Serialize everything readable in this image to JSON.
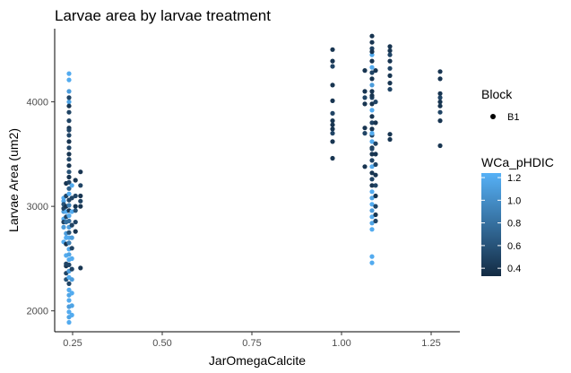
{
  "chart_data": {
    "type": "scatter",
    "title": "Larvae area by larvae treatment",
    "xlabel": "JarOmegaCalcite",
    "ylabel": "Larvae Area (um2)",
    "xlim": [
      0.2,
      1.33
    ],
    "ylim": [
      1800,
      4700
    ],
    "xticks": [
      0.25,
      0.5,
      0.75,
      1.0,
      1.25
    ],
    "xtick_labels": [
      "0.25",
      "0.50",
      "0.75",
      "1.00",
      "1.25"
    ],
    "yticks": [
      2000,
      3000,
      4000
    ],
    "ytick_labels": [
      "2000",
      "3000",
      "4000"
    ],
    "grid": false,
    "legend_shape": {
      "title": "Block",
      "entries": [
        "B1"
      ]
    },
    "legend_color": {
      "title": "WCa_pHDIC",
      "min": 0.33,
      "max": 1.24,
      "ticks": [
        0.4,
        0.6,
        0.8,
        1.0,
        1.2
      ],
      "tick_labels": [
        "0.4",
        "0.6",
        "0.8",
        "1.0",
        "1.2"
      ],
      "low_color": "#132B43",
      "high_color": "#56B1F7"
    },
    "points": [
      [
        0.225,
        3080,
        1.2
      ],
      [
        0.225,
        3050,
        1.15
      ],
      [
        0.225,
        2950,
        1.1
      ],
      [
        0.225,
        2880,
        1.2
      ],
      [
        0.225,
        2800,
        1.1
      ],
      [
        0.225,
        2660,
        1.2
      ],
      [
        0.225,
        2850,
        0.5
      ],
      [
        0.225,
        2980,
        0.5
      ],
      [
        0.225,
        3020,
        0.6
      ],
      [
        0.232,
        3220,
        0.4
      ],
      [
        0.232,
        3100,
        0.5
      ],
      [
        0.232,
        2950,
        1.2
      ],
      [
        0.232,
        2850,
        0.8
      ],
      [
        0.232,
        2740,
        1.1
      ],
      [
        0.232,
        2640,
        0.4
      ],
      [
        0.232,
        2530,
        1.2
      ],
      [
        0.232,
        2430,
        0.4
      ],
      [
        0.232,
        2360,
        0.5
      ],
      [
        0.232,
        2300,
        0.6
      ],
      [
        0.232,
        2900,
        0.5
      ],
      [
        0.232,
        3000,
        0.4
      ],
      [
        0.232,
        2700,
        1.2
      ],
      [
        0.232,
        2450,
        0.5
      ],
      [
        0.24,
        4270,
        1.2
      ],
      [
        0.24,
        4210,
        1.2
      ],
      [
        0.24,
        4100,
        1.1
      ],
      [
        0.24,
        4000,
        1.15
      ],
      [
        0.24,
        3900,
        0.5
      ],
      [
        0.24,
        3820,
        0.5
      ],
      [
        0.24,
        3750,
        0.4
      ],
      [
        0.24,
        3680,
        0.5
      ],
      [
        0.24,
        3620,
        0.4
      ],
      [
        0.24,
        3560,
        0.5
      ],
      [
        0.24,
        3500,
        0.4
      ],
      [
        0.24,
        3450,
        0.5
      ],
      [
        0.24,
        3390,
        0.4
      ],
      [
        0.24,
        3330,
        0.6
      ],
      [
        0.24,
        3280,
        0.4
      ],
      [
        0.24,
        3230,
        0.5
      ],
      [
        0.24,
        3170,
        0.7
      ],
      [
        0.24,
        3120,
        1.2
      ],
      [
        0.24,
        3060,
        0.5
      ],
      [
        0.24,
        3010,
        0.9
      ],
      [
        0.24,
        2960,
        0.4
      ],
      [
        0.24,
        2910,
        1.2
      ],
      [
        0.24,
        2860,
        0.8
      ],
      [
        0.24,
        2800,
        1.1
      ],
      [
        0.24,
        2750,
        0.6
      ],
      [
        0.24,
        2700,
        1.2
      ],
      [
        0.24,
        2650,
        0.9
      ],
      [
        0.24,
        2590,
        1.2
      ],
      [
        0.24,
        2540,
        1.15
      ],
      [
        0.24,
        2490,
        1.2
      ],
      [
        0.24,
        2440,
        0.5
      ],
      [
        0.24,
        2380,
        1.1
      ],
      [
        0.24,
        2320,
        1.2
      ],
      [
        0.24,
        2260,
        0.5
      ],
      [
        0.24,
        2200,
        1.2
      ],
      [
        0.24,
        2150,
        1.15
      ],
      [
        0.24,
        2100,
        1.2
      ],
      [
        0.24,
        2040,
        1.1
      ],
      [
        0.24,
        1990,
        1.2
      ],
      [
        0.24,
        1940,
        1.15
      ],
      [
        0.24,
        1890,
        1.2
      ],
      [
        0.24,
        4040,
        0.5
      ],
      [
        0.24,
        3960,
        0.4
      ],
      [
        0.24,
        3730,
        0.5
      ],
      [
        0.248,
        3200,
        1.2
      ],
      [
        0.248,
        3080,
        0.5
      ],
      [
        0.248,
        2950,
        1.2
      ],
      [
        0.248,
        2820,
        0.5
      ],
      [
        0.248,
        2700,
        1.1
      ],
      [
        0.248,
        2600,
        0.5
      ],
      [
        0.248,
        2500,
        1.2
      ],
      [
        0.248,
        2400,
        0.5
      ],
      [
        0.248,
        2300,
        1.1
      ],
      [
        0.248,
        2170,
        1.2
      ],
      [
        0.248,
        2050,
        1.15
      ],
      [
        0.248,
        1960,
        1.2
      ],
      [
        0.258,
        3250,
        0.4
      ],
      [
        0.258,
        3100,
        0.5
      ],
      [
        0.258,
        3000,
        0.4
      ],
      [
        0.258,
        2960,
        0.6
      ],
      [
        0.258,
        2850,
        0.5
      ],
      [
        0.258,
        2760,
        0.4
      ],
      [
        0.272,
        3330,
        0.4
      ],
      [
        0.272,
        3200,
        0.5
      ],
      [
        0.272,
        3100,
        0.4
      ],
      [
        0.272,
        3050,
        0.5
      ],
      [
        0.272,
        3000,
        0.4
      ],
      [
        0.272,
        2410,
        0.4
      ],
      [
        0.975,
        4500,
        0.4
      ],
      [
        0.975,
        4390,
        0.4
      ],
      [
        0.975,
        4340,
        0.5
      ],
      [
        0.975,
        4160,
        0.4
      ],
      [
        0.975,
        4010,
        0.4
      ],
      [
        0.975,
        3890,
        0.5
      ],
      [
        0.975,
        3820,
        0.4
      ],
      [
        0.975,
        3740,
        0.4
      ],
      [
        0.975,
        3700,
        0.5
      ],
      [
        0.975,
        3620,
        0.4
      ],
      [
        0.975,
        3460,
        0.4
      ],
      [
        0.975,
        3780,
        0.4
      ],
      [
        1.065,
        4300,
        0.4
      ],
      [
        1.065,
        4040,
        0.5
      ],
      [
        1.065,
        3980,
        0.4
      ],
      [
        1.065,
        3750,
        0.4
      ],
      [
        1.065,
        3700,
        0.5
      ],
      [
        1.065,
        3380,
        0.4
      ],
      [
        1.065,
        4100,
        0.4
      ],
      [
        1.085,
        4630,
        0.4
      ],
      [
        1.085,
        4570,
        0.4
      ],
      [
        1.085,
        4510,
        0.5
      ],
      [
        1.085,
        4450,
        1.2
      ],
      [
        1.085,
        4390,
        0.4
      ],
      [
        1.085,
        4330,
        1.2
      ],
      [
        1.085,
        4280,
        0.5
      ],
      [
        1.085,
        4220,
        0.4
      ],
      [
        1.085,
        4160,
        1.1
      ],
      [
        1.085,
        4100,
        0.4
      ],
      [
        1.085,
        4040,
        0.5
      ],
      [
        1.085,
        3980,
        0.4
      ],
      [
        1.085,
        3920,
        1.2
      ],
      [
        1.085,
        3860,
        0.4
      ],
      [
        1.085,
        3800,
        0.5
      ],
      [
        1.085,
        3740,
        0.4
      ],
      [
        1.085,
        3680,
        0.5
      ],
      [
        1.085,
        3620,
        1.2
      ],
      [
        1.085,
        3560,
        0.4
      ],
      [
        1.085,
        3500,
        0.4
      ],
      [
        1.085,
        3440,
        0.5
      ],
      [
        1.085,
        3380,
        1.2
      ],
      [
        1.085,
        3320,
        0.4
      ],
      [
        1.085,
        3260,
        0.5
      ],
      [
        1.085,
        3200,
        0.4
      ],
      [
        1.085,
        3140,
        1.2
      ],
      [
        1.085,
        3080,
        1.15
      ],
      [
        1.085,
        3020,
        1.2
      ],
      [
        1.085,
        2960,
        1.1
      ],
      [
        1.085,
        2900,
        1.2
      ],
      [
        1.085,
        2840,
        1.15
      ],
      [
        1.085,
        2780,
        1.2
      ],
      [
        1.085,
        2520,
        1.2
      ],
      [
        1.085,
        2460,
        1.2
      ],
      [
        1.085,
        4480,
        0.4
      ],
      [
        1.085,
        4060,
        0.4
      ],
      [
        1.085,
        3700,
        1.2
      ],
      [
        1.085,
        3550,
        0.5
      ],
      [
        1.095,
        4300,
        0.4
      ],
      [
        1.095,
        4000,
        0.5
      ],
      [
        1.095,
        3800,
        0.4
      ],
      [
        1.095,
        3600,
        0.5
      ],
      [
        1.095,
        3500,
        0.4
      ],
      [
        1.095,
        3400,
        0.5
      ],
      [
        1.095,
        3300,
        0.4
      ],
      [
        1.095,
        3200,
        0.5
      ],
      [
        1.095,
        3100,
        0.4
      ],
      [
        1.095,
        3000,
        0.5
      ],
      [
        1.095,
        2920,
        0.4
      ],
      [
        1.095,
        2860,
        0.5
      ],
      [
        1.135,
        4530,
        0.4
      ],
      [
        1.135,
        4490,
        0.4
      ],
      [
        1.135,
        4450,
        0.5
      ],
      [
        1.135,
        4390,
        0.4
      ],
      [
        1.135,
        4320,
        0.5
      ],
      [
        1.135,
        4250,
        0.4
      ],
      [
        1.135,
        4180,
        0.4
      ],
      [
        1.135,
        4120,
        0.5
      ],
      [
        1.135,
        3690,
        0.4
      ],
      [
        1.135,
        3640,
        0.4
      ],
      [
        1.275,
        4290,
        0.4
      ],
      [
        1.275,
        4220,
        0.4
      ],
      [
        1.275,
        4080,
        0.4
      ],
      [
        1.275,
        4040,
        0.5
      ],
      [
        1.275,
        4000,
        0.4
      ],
      [
        1.275,
        3960,
        0.4
      ],
      [
        1.275,
        3900,
        0.5
      ],
      [
        1.275,
        3820,
        0.4
      ],
      [
        1.275,
        3580,
        0.4
      ]
    ]
  }
}
